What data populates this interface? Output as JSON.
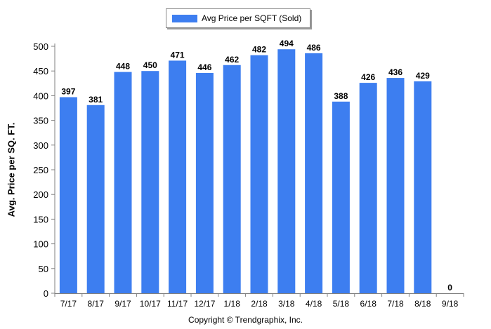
{
  "chart_data": {
    "type": "bar",
    "categories": [
      "7/17",
      "8/17",
      "9/17",
      "10/17",
      "11/17",
      "12/17",
      "1/18",
      "2/18",
      "3/18",
      "4/18",
      "5/18",
      "6/18",
      "7/18",
      "8/18",
      "9/18"
    ],
    "series": [
      {
        "name": "Avg Price per SQFT (Sold)",
        "values": [
          397,
          381,
          448,
          450,
          471,
          446,
          462,
          482,
          494,
          486,
          388,
          426,
          436,
          429,
          0
        ]
      }
    ],
    "ylabel": "Avg. Price per SQ. FT.",
    "xlabel": "",
    "ylim": [
      0,
      500
    ],
    "yticks": [
      0,
      50,
      100,
      150,
      200,
      250,
      300,
      350,
      400,
      450,
      500
    ],
    "grid": false,
    "legend_position": "top-center",
    "data_labels": true,
    "colors": {
      "bar": "#3d7ef0"
    }
  },
  "copyright": "Copyright © Trendgraphix, Inc."
}
